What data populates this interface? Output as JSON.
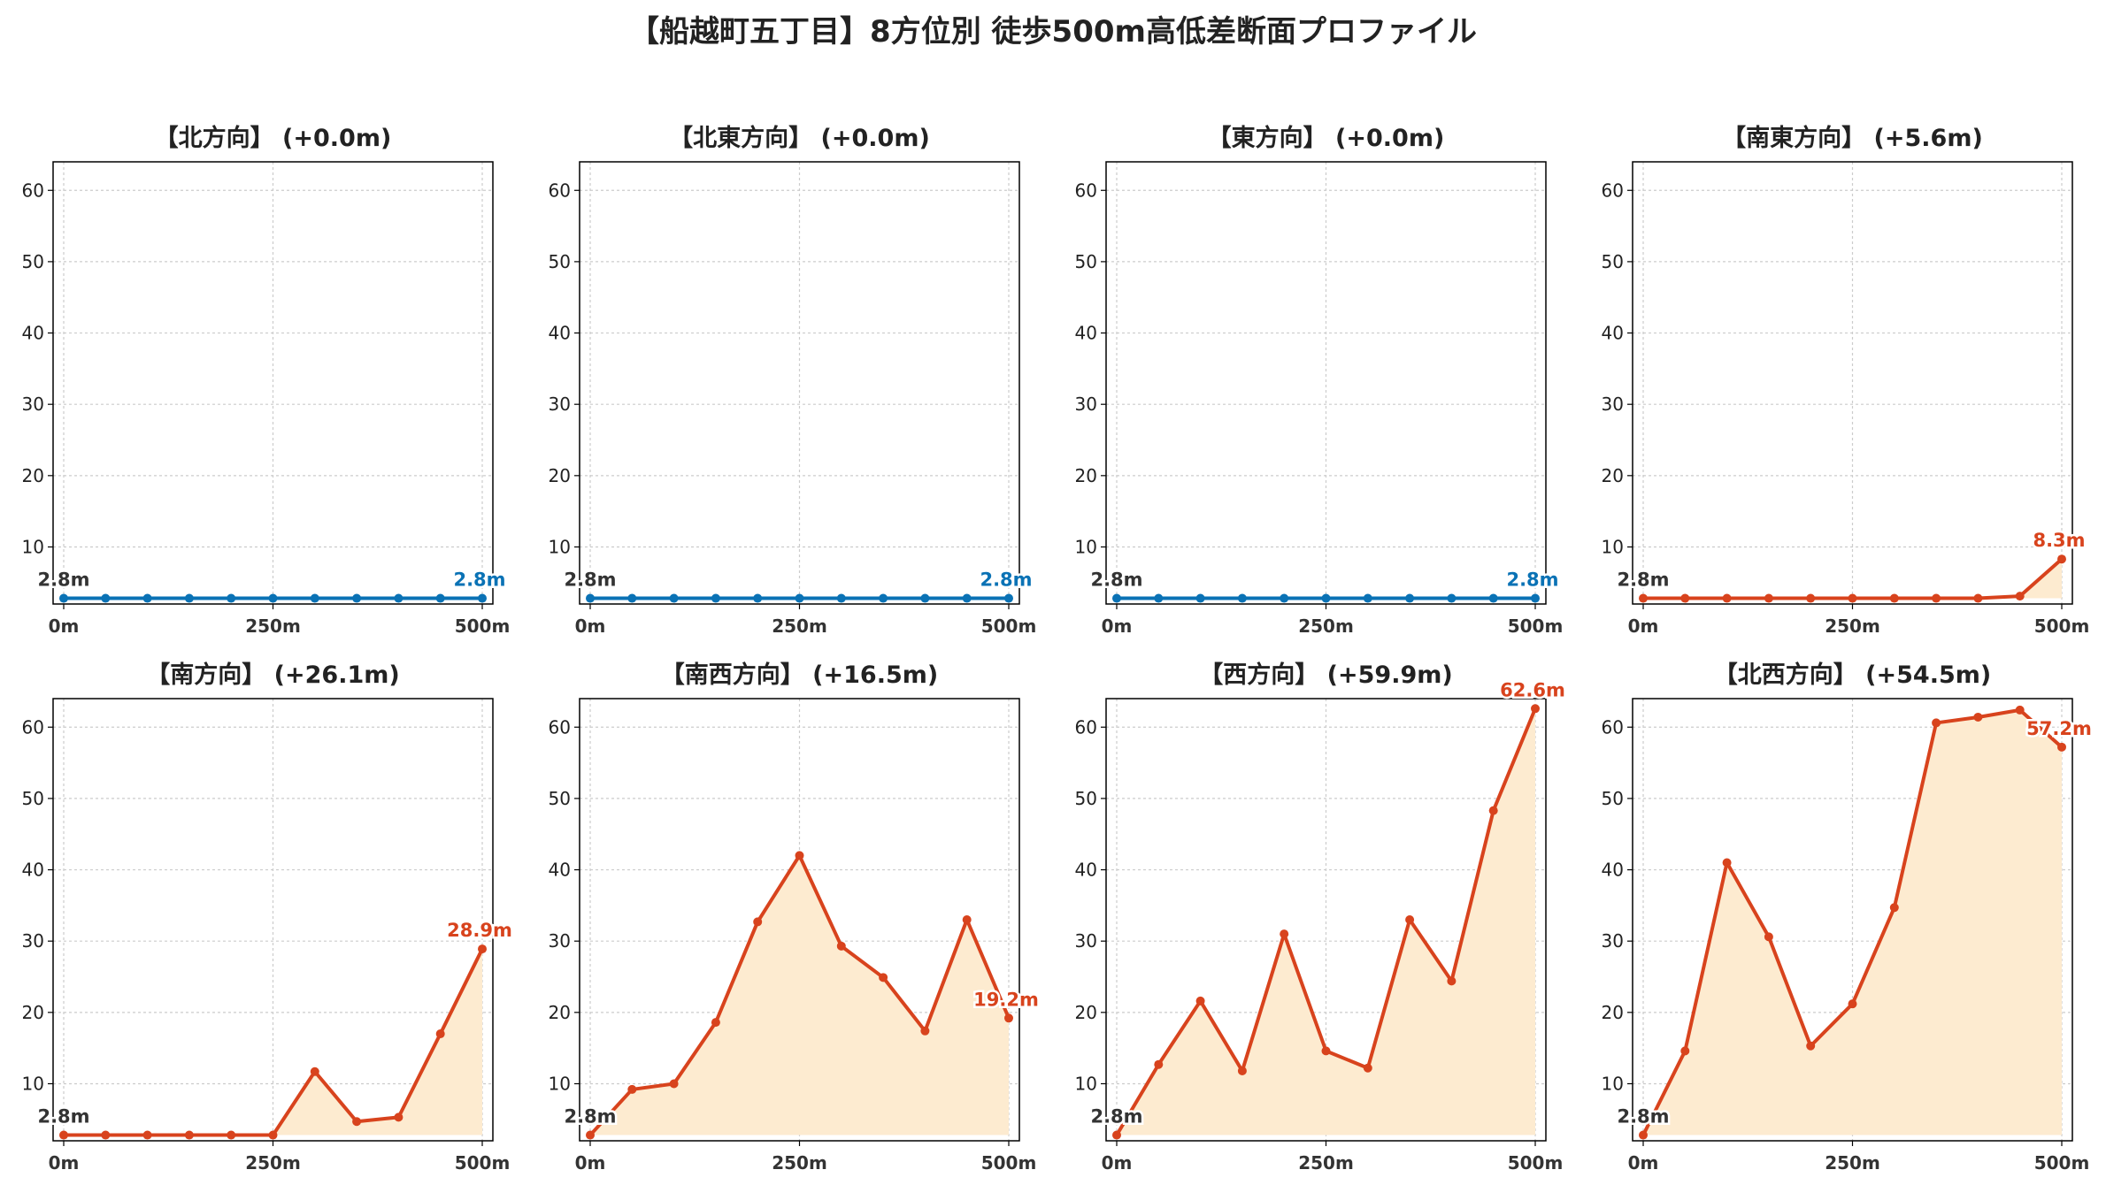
{
  "title": "【船越町五丁目】8方位別 徒歩500m高低差断面プロファイル",
  "colors": {
    "flat_line": "#0a72b5",
    "rise_line": "#d8431d",
    "fill": "#fdebd0",
    "start_label": "#333333",
    "grid": "#cccccc"
  },
  "chart_data": [
    {
      "type": "line",
      "title": "【北方向】 (+0.0m)",
      "x": [
        0,
        50,
        100,
        150,
        200,
        250,
        300,
        350,
        400,
        450,
        500
      ],
      "y": [
        2.8,
        2.8,
        2.8,
        2.8,
        2.8,
        2.8,
        2.8,
        2.8,
        2.8,
        2.8,
        2.8
      ],
      "style": "flat",
      "start_label": "2.8m",
      "end_label": "2.8m",
      "xticks": [
        "0m",
        "250m",
        "500m"
      ],
      "yticks": [
        10,
        20,
        30,
        40,
        50,
        60
      ],
      "xlim": [
        0,
        500
      ],
      "ylim": [
        2,
        64
      ],
      "grid": true
    },
    {
      "type": "line",
      "title": "【北東方向】 (+0.0m)",
      "x": [
        0,
        50,
        100,
        150,
        200,
        250,
        300,
        350,
        400,
        450,
        500
      ],
      "y": [
        2.8,
        2.8,
        2.8,
        2.8,
        2.8,
        2.8,
        2.8,
        2.8,
        2.8,
        2.8,
        2.8
      ],
      "style": "flat",
      "start_label": "2.8m",
      "end_label": "2.8m",
      "xticks": [
        "0m",
        "250m",
        "500m"
      ],
      "yticks": [
        10,
        20,
        30,
        40,
        50,
        60
      ],
      "xlim": [
        0,
        500
      ],
      "ylim": [
        2,
        64
      ],
      "grid": true
    },
    {
      "type": "line",
      "title": "【東方向】 (+0.0m)",
      "x": [
        0,
        50,
        100,
        150,
        200,
        250,
        300,
        350,
        400,
        450,
        500
      ],
      "y": [
        2.8,
        2.8,
        2.8,
        2.8,
        2.8,
        2.8,
        2.8,
        2.8,
        2.8,
        2.8,
        2.8
      ],
      "style": "flat",
      "start_label": "2.8m",
      "end_label": "2.8m",
      "xticks": [
        "0m",
        "250m",
        "500m"
      ],
      "yticks": [
        10,
        20,
        30,
        40,
        50,
        60
      ],
      "xlim": [
        0,
        500
      ],
      "ylim": [
        2,
        64
      ],
      "grid": true
    },
    {
      "type": "line",
      "title": "【南東方向】 (+5.6m)",
      "x": [
        0,
        50,
        100,
        150,
        200,
        250,
        300,
        350,
        400,
        450,
        500
      ],
      "y": [
        2.8,
        2.8,
        2.8,
        2.8,
        2.8,
        2.8,
        2.8,
        2.8,
        2.8,
        3.1,
        8.3
      ],
      "style": "rise",
      "start_label": "2.8m",
      "end_label": "8.3m",
      "xticks": [
        "0m",
        "250m",
        "500m"
      ],
      "yticks": [
        10,
        20,
        30,
        40,
        50,
        60
      ],
      "xlim": [
        0,
        500
      ],
      "ylim": [
        2,
        64
      ],
      "grid": true
    },
    {
      "type": "line",
      "title": "【南方向】 (+26.1m)",
      "x": [
        0,
        50,
        100,
        150,
        200,
        250,
        300,
        350,
        400,
        450,
        500
      ],
      "y": [
        2.8,
        2.8,
        2.8,
        2.8,
        2.8,
        2.8,
        11.7,
        4.7,
        5.3,
        17.0,
        28.9
      ],
      "style": "rise",
      "start_label": "2.8m",
      "end_label": "28.9m",
      "xticks": [
        "0m",
        "250m",
        "500m"
      ],
      "yticks": [
        10,
        20,
        30,
        40,
        50,
        60
      ],
      "xlim": [
        0,
        500
      ],
      "ylim": [
        2,
        64
      ],
      "grid": true
    },
    {
      "type": "line",
      "title": "【南西方向】 (+16.5m)",
      "x": [
        0,
        50,
        100,
        150,
        200,
        250,
        300,
        350,
        400,
        450,
        500
      ],
      "y": [
        2.8,
        9.2,
        10.0,
        18.6,
        32.7,
        42.0,
        29.3,
        24.9,
        17.4,
        33.0,
        19.2
      ],
      "style": "rise",
      "start_label": "2.8m",
      "end_label": "19.2m",
      "xticks": [
        "0m",
        "250m",
        "500m"
      ],
      "yticks": [
        10,
        20,
        30,
        40,
        50,
        60
      ],
      "xlim": [
        0,
        500
      ],
      "ylim": [
        2,
        64
      ],
      "grid": true
    },
    {
      "type": "line",
      "title": "【西方向】 (+59.9m)",
      "x": [
        0,
        50,
        100,
        150,
        200,
        250,
        300,
        350,
        400,
        450,
        500
      ],
      "y": [
        2.8,
        12.7,
        21.6,
        11.8,
        31.0,
        14.6,
        12.2,
        33.0,
        24.4,
        48.3,
        62.6
      ],
      "style": "rise",
      "start_label": "2.8m",
      "end_label": "62.6m",
      "xticks": [
        "0m",
        "250m",
        "500m"
      ],
      "yticks": [
        10,
        20,
        30,
        40,
        50,
        60
      ],
      "xlim": [
        0,
        500
      ],
      "ylim": [
        2,
        64
      ],
      "grid": true
    },
    {
      "type": "line",
      "title": "【北西方向】 (+54.5m)",
      "x": [
        0,
        50,
        100,
        150,
        200,
        250,
        300,
        350,
        400,
        450,
        500
      ],
      "y": [
        2.8,
        14.6,
        41.0,
        30.6,
        15.3,
        21.2,
        34.7,
        60.6,
        61.4,
        62.4,
        57.2
      ],
      "style": "rise",
      "start_label": "2.8m",
      "end_label": "57.2m",
      "xticks": [
        "0m",
        "250m",
        "500m"
      ],
      "yticks": [
        10,
        20,
        30,
        40,
        50,
        60
      ],
      "xlim": [
        0,
        500
      ],
      "ylim": [
        2,
        64
      ],
      "grid": true
    }
  ]
}
